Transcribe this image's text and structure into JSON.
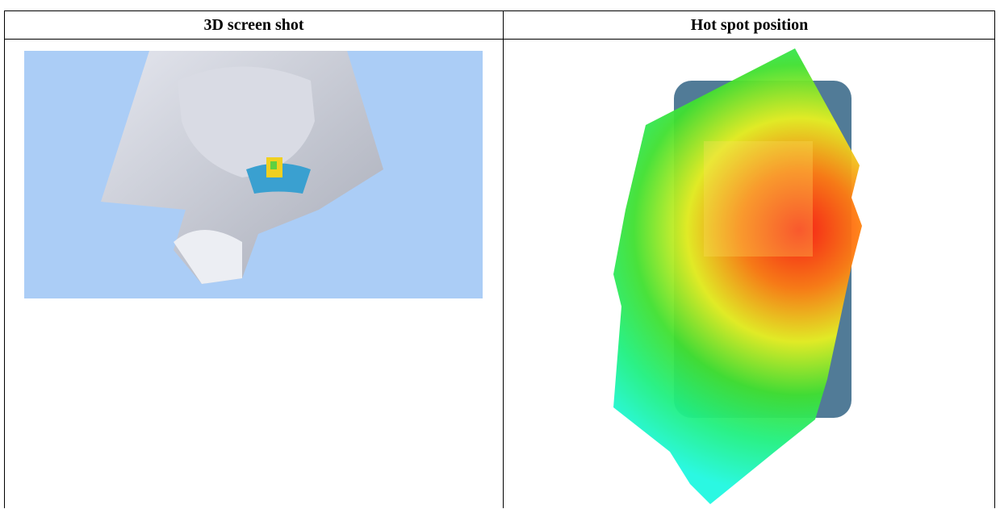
{
  "table": {
    "header": [
      "3D screen shot",
      "Hot spot position"
    ]
  }
}
